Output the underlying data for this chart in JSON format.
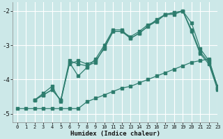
{
  "xlabel": "Humidex (Indice chaleur)",
  "bg_color": "#cce8e8",
  "line_color": "#2e7d6e",
  "grid_color": "#ffffff",
  "xlim": [
    -0.5,
    23
  ],
  "ylim": [
    -5.25,
    -1.75
  ],
  "yticks": [
    -5,
    -4,
    -3,
    -2
  ],
  "xticks": [
    0,
    1,
    2,
    3,
    4,
    5,
    6,
    7,
    8,
    9,
    10,
    11,
    12,
    13,
    14,
    15,
    16,
    17,
    18,
    19,
    20,
    21,
    22,
    23
  ],
  "line_bottom_x": [
    0,
    1,
    2,
    3,
    4,
    5,
    6,
    7,
    8,
    9,
    10,
    11,
    12,
    13,
    14,
    15,
    16,
    17,
    18,
    19,
    20,
    21,
    22,
    23
  ],
  "line_bottom_y": [
    -4.85,
    -4.85,
    -4.85,
    -4.85,
    -4.85,
    -4.85,
    -4.85,
    -4.85,
    -4.65,
    -4.55,
    -4.45,
    -4.35,
    -4.25,
    -4.2,
    -4.1,
    -4.0,
    -3.9,
    -3.8,
    -3.7,
    -3.6,
    -3.5,
    -3.45,
    -3.4,
    -4.25
  ],
  "line_mid1_x": [
    2,
    3,
    4,
    5,
    6,
    7,
    8,
    9,
    10,
    11,
    12,
    13,
    14,
    15,
    16,
    17,
    18,
    19,
    20,
    21,
    22,
    23
  ],
  "line_mid1_y": [
    -4.6,
    -4.45,
    -4.3,
    -4.6,
    -3.55,
    -3.45,
    -3.55,
    -3.45,
    -3.1,
    -2.6,
    -2.6,
    -2.75,
    -2.6,
    -2.4,
    -2.3,
    -2.1,
    -2.05,
    -2.0,
    -2.55,
    -3.2,
    -3.5,
    -4.25
  ],
  "line_mid2_x": [
    2,
    3,
    4,
    5,
    6,
    7,
    8,
    9,
    10,
    11,
    12,
    13,
    14,
    15,
    16,
    17,
    18,
    19,
    20,
    21,
    22,
    23
  ],
  "line_mid2_y": [
    -4.6,
    -4.45,
    -4.3,
    -4.6,
    -3.45,
    -3.55,
    -3.6,
    -3.5,
    -3.05,
    -2.6,
    -2.6,
    -2.8,
    -2.65,
    -2.45,
    -2.3,
    -2.1,
    -2.1,
    -2.0,
    -2.6,
    -3.25,
    -3.55,
    -4.3
  ],
  "line_top_x": [
    2,
    3,
    4,
    5,
    6,
    7,
    8,
    9,
    10,
    11,
    12,
    13,
    14,
    15,
    16,
    17,
    18,
    19,
    20,
    21,
    22,
    23
  ],
  "line_top_y": [
    -4.6,
    -4.4,
    -4.2,
    -4.65,
    -3.5,
    -3.9,
    -3.65,
    -3.4,
    -3.0,
    -2.55,
    -2.55,
    -2.8,
    -2.65,
    -2.45,
    -2.25,
    -2.1,
    -2.05,
    -2.0,
    -2.35,
    -3.1,
    -3.45,
    -4.2
  ]
}
